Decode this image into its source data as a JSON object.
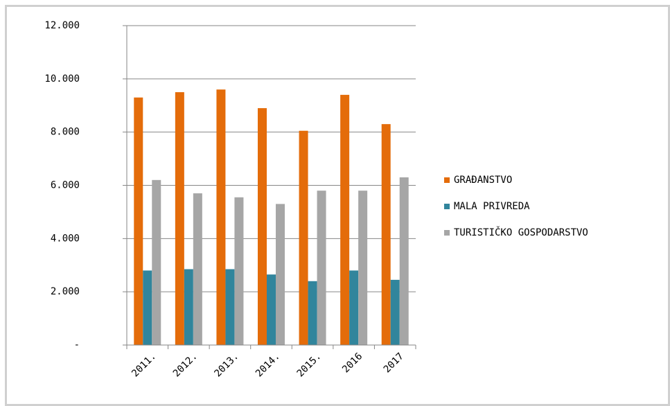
{
  "chart_data": {
    "type": "bar",
    "categories": [
      "2011.",
      "2012.",
      "2013.",
      "2014.",
      "2015.",
      "2016",
      "2017"
    ],
    "series": [
      {
        "name": "GRAĐANSTVO",
        "color": "#e46c0a",
        "values": [
          9300,
          9500,
          9600,
          8900,
          8050,
          9400,
          8300
        ]
      },
      {
        "name": "MALA PRIVREDA",
        "color": "#31859c",
        "values": [
          2800,
          2850,
          2850,
          2650,
          2400,
          2800,
          2450
        ]
      },
      {
        "name": "TURISTIČKO GOSPODARSTVO",
        "color": "#a6a6a6",
        "values": [
          6200,
          5700,
          5550,
          5300,
          5800,
          5800,
          6300
        ]
      }
    ],
    "ylim": [
      0,
      12000
    ],
    "yticks": [
      {
        "value": 0,
        "label": "-"
      },
      {
        "value": 2000,
        "label": "2.000"
      },
      {
        "value": 4000,
        "label": "4.000"
      },
      {
        "value": 6000,
        "label": "6.000"
      },
      {
        "value": 8000,
        "label": "8.000"
      },
      {
        "value": 10000,
        "label": "10.000"
      },
      {
        "value": 12000,
        "label": "12.000"
      }
    ],
    "grid": true,
    "legend": "right"
  }
}
